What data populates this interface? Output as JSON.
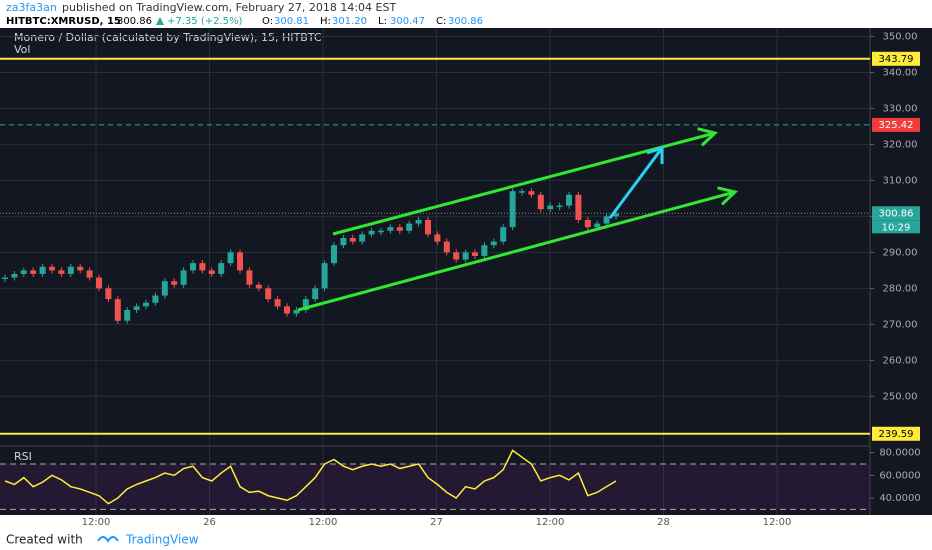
{
  "header": {
    "author": "za3fa3an",
    "published": "published on TradingView.com, February 27, 2018 14:04 EST",
    "symbol": "HITBTC:XMRUSD, 15",
    "last": "300.86",
    "change": "+7.35 (+2.5%)",
    "ohlc": [
      {
        "label": "O:",
        "value": "300.81"
      },
      {
        "label": "H:",
        "value": "301.20"
      },
      {
        "label": "L:",
        "value": "300.47"
      },
      {
        "label": "C:",
        "value": "300.86"
      }
    ]
  },
  "footer": {
    "created": "Created with",
    "brand": "TradingView"
  },
  "chart_data": {
    "type": "candlestick",
    "title": "Monero / Dollar (calculated by TradingView), 15, HITBTC",
    "volume_label": "Vol",
    "ylim": [
      236.47,
      352.35
    ],
    "yticks": [
      {
        "value": 250,
        "label": "250.00"
      },
      {
        "value": 260,
        "label": "260.00"
      },
      {
        "value": 270,
        "label": "270.00"
      },
      {
        "value": 280,
        "label": "280.00"
      },
      {
        "value": 290,
        "label": "290.00"
      },
      {
        "value": 300,
        "label": "300.00"
      },
      {
        "value": 310,
        "label": "310.00"
      },
      {
        "value": 320,
        "label": "320.00"
      },
      {
        "value": 330,
        "label": "330.00"
      },
      {
        "value": 340,
        "label": "340.00"
      },
      {
        "value": 350,
        "label": "350.00"
      }
    ],
    "xticks": [
      "12:00",
      "26",
      "12:00",
      "27",
      "12:00",
      "28",
      "12:00"
    ],
    "close": [
      283,
      284,
      285,
      284,
      286,
      285,
      284,
      286,
      285,
      283,
      280,
      277,
      271,
      274,
      275,
      276,
      278,
      282,
      281,
      285,
      287,
      285,
      284,
      287,
      290,
      285,
      281,
      280,
      277,
      275,
      273,
      274,
      277,
      280,
      287,
      292,
      294,
      293,
      295,
      296,
      296,
      297,
      296,
      298,
      299,
      295,
      293,
      290,
      288,
      290,
      289,
      292,
      293,
      297,
      307,
      307,
      306,
      302,
      303,
      303,
      306,
      299,
      297,
      298,
      300,
      300.86
    ],
    "up_color": "#26a69a",
    "down_color": "#ef5350",
    "price_labels": [
      {
        "value": 343.79,
        "color": "#ffeb3b"
      },
      {
        "value": 325.42,
        "color": "#ef3b3b"
      },
      {
        "value": 300.86,
        "color": "#26a69a"
      },
      {
        "value": 239.59,
        "color": "#ffeb3b"
      }
    ],
    "countdown": "10:29",
    "rsi": {
      "name": "RSI",
      "ylim": [
        25,
        85
      ],
      "yticks": [
        {
          "value": 80,
          "label": "80.0000"
        },
        {
          "value": 60,
          "label": "60.0000"
        },
        {
          "value": 40,
          "label": "40.0000"
        }
      ],
      "bands": [
        70,
        30
      ],
      "color": "#ffeb3b",
      "values": [
        55,
        52,
        58,
        50,
        54,
        60,
        56,
        50,
        48,
        45,
        42,
        35,
        40,
        48,
        52,
        55,
        58,
        62,
        60,
        66,
        68,
        58,
        55,
        62,
        68,
        50,
        45,
        46,
        42,
        40,
        38,
        42,
        50,
        58,
        70,
        74,
        68,
        65,
        68,
        70,
        68,
        70,
        66,
        68,
        70,
        58,
        52,
        45,
        40,
        50,
        48,
        55,
        58,
        65,
        82,
        76,
        70,
        55,
        58,
        60,
        56,
        62,
        42,
        45,
        50,
        55
      ]
    }
  }
}
